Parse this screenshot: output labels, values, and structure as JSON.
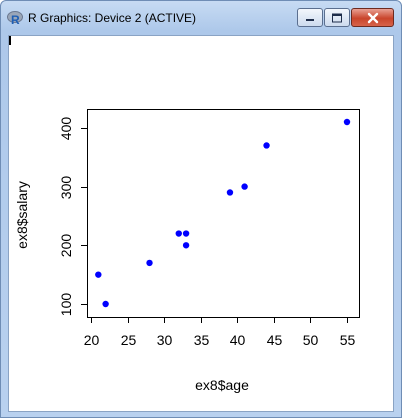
{
  "window": {
    "title": "R Graphics: Device 2 (ACTIVE)",
    "app_icon": "r-logo-icon",
    "controls": {
      "minimize": "minimize-icon",
      "maximize": "maximize-icon",
      "close": "close-icon"
    }
  },
  "chart_data": {
    "type": "scatter",
    "xlabel": "ex8$age",
    "ylabel": "ex8$salary",
    "xlim": [
      20,
      55
    ],
    "ylim": [
      100,
      410
    ],
    "x_ticks": [
      20,
      25,
      30,
      35,
      40,
      45,
      50,
      55
    ],
    "y_ticks": [
      100,
      200,
      300,
      400
    ],
    "point_color": "#0000ff",
    "grid": false,
    "legend": "none",
    "points": [
      {
        "x": 21,
        "y": 150
      },
      {
        "x": 22,
        "y": 100
      },
      {
        "x": 28,
        "y": 170
      },
      {
        "x": 32,
        "y": 220
      },
      {
        "x": 33,
        "y": 220
      },
      {
        "x": 33,
        "y": 200
      },
      {
        "x": 39,
        "y": 290
      },
      {
        "x": 41,
        "y": 300
      },
      {
        "x": 44,
        "y": 370
      },
      {
        "x": 55,
        "y": 410
      }
    ]
  }
}
